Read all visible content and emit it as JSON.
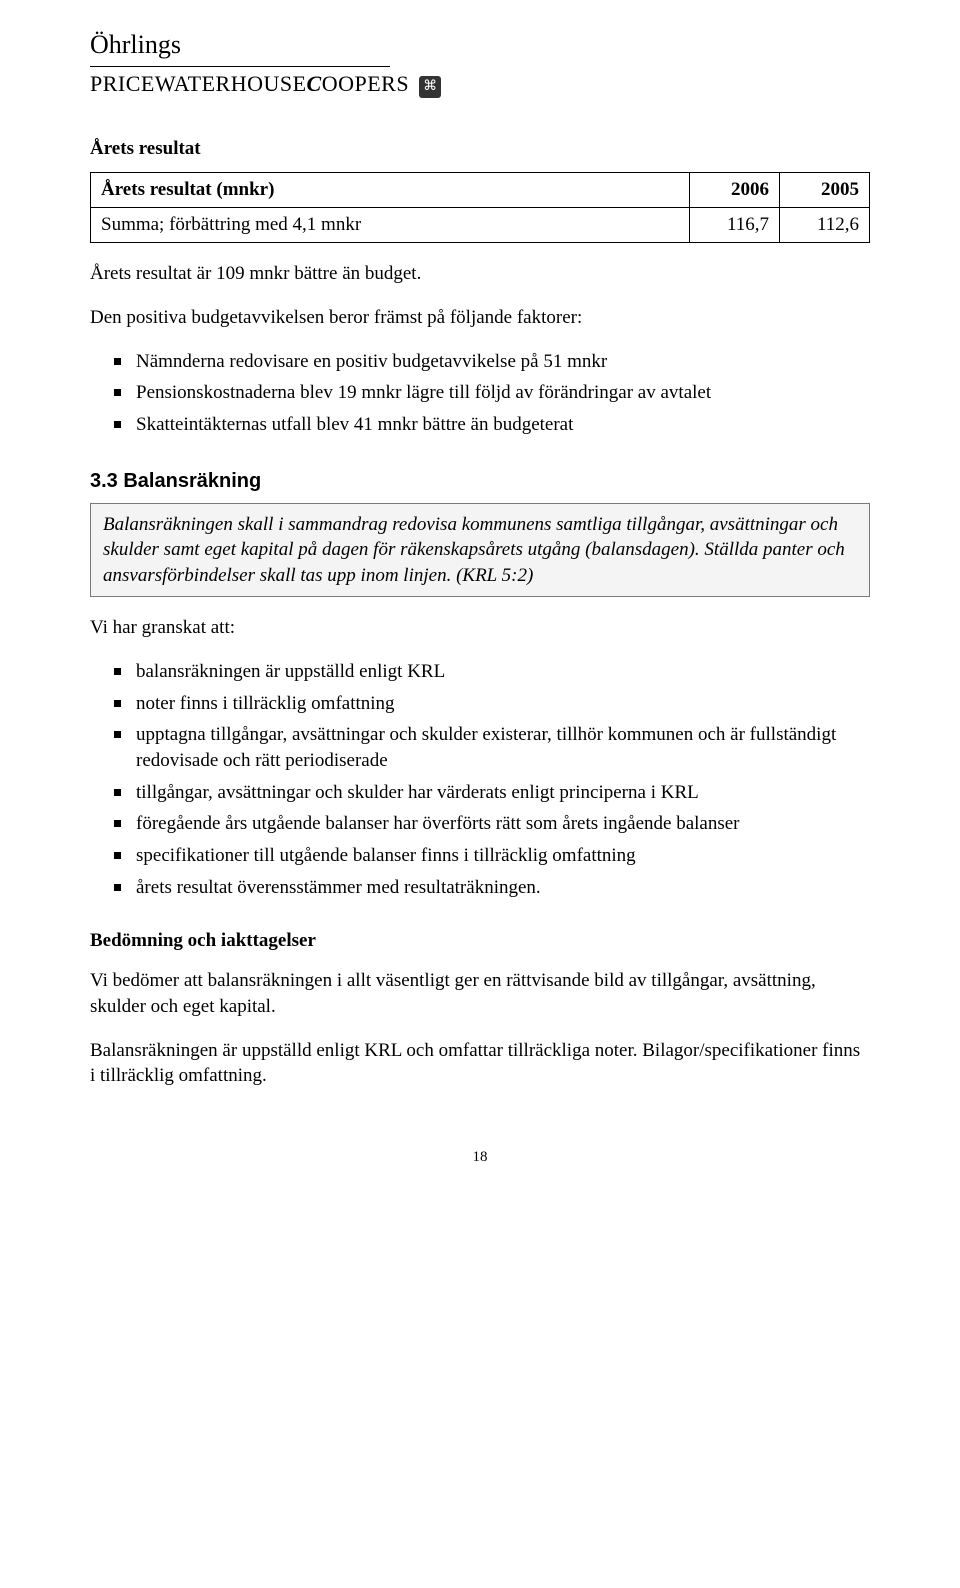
{
  "logo": {
    "top": "Öhrlings",
    "pwc_html": "PRICEWATERHOUSECOOPERS",
    "mark": "⌘"
  },
  "section1": {
    "title": "Årets resultat"
  },
  "table": {
    "header": [
      "Årets resultat (mnkr)",
      "2006",
      "2005"
    ],
    "row1": [
      "Summa; förbättring med 4,1 mnkr",
      "116,7",
      "112,6"
    ]
  },
  "para1": "Årets resultat är 109 mnkr bättre än budget.",
  "para2": "Den positiva budgetavvikelsen beror främst på följande faktorer:",
  "list1": [
    "Nämnderna redovisare en positiv budgetavvikelse på 51 mnkr",
    "Pensionskostnaderna blev 19 mnkr lägre till följd av förändringar av avtalet",
    "Skatteintäkternas utfall blev 41 mnkr bättre än budgeterat"
  ],
  "subhead33": "3.3   Balansräkning",
  "callout": "Balansräkningen skall i sammandrag redovisa kommunens samtliga tillgångar, avsättningar och skulder samt eget kapital på dagen för räkenskapsårets utgång (balansdagen). Ställda panter och ansvarsförbindelser skall tas upp inom linjen. (KRL 5:2)",
  "para3": "Vi har granskat att:",
  "list2": [
    "balansräkningen är uppställd enligt KRL",
    "noter finns i tillräcklig omfattning",
    "upptagna tillgångar, avsättningar och skulder existerar, tillhör kommunen och är fullständigt redovisade och rätt periodiserade",
    "tillgångar, avsättningar och skulder har värderats enligt principerna i KRL",
    "föregående års utgående balanser har överförts rätt som årets ingående balanser",
    "specifikationer till utgående balanser finns i tillräcklig omfattning",
    "årets resultat överensstämmer med resultaträkningen."
  ],
  "subbold": "Bedömning och iakttagelser",
  "para4": "Vi bedömer att balansräkningen i allt väsentligt ger en rättvisande bild av tillgångar, avsättning, skulder och eget kapital.",
  "para5": "Balansräkningen är uppställd enligt KRL och omfattar tillräckliga noter. Bilagor/specifikationer finns i tillräcklig omfattning.",
  "pagenum": "18"
}
